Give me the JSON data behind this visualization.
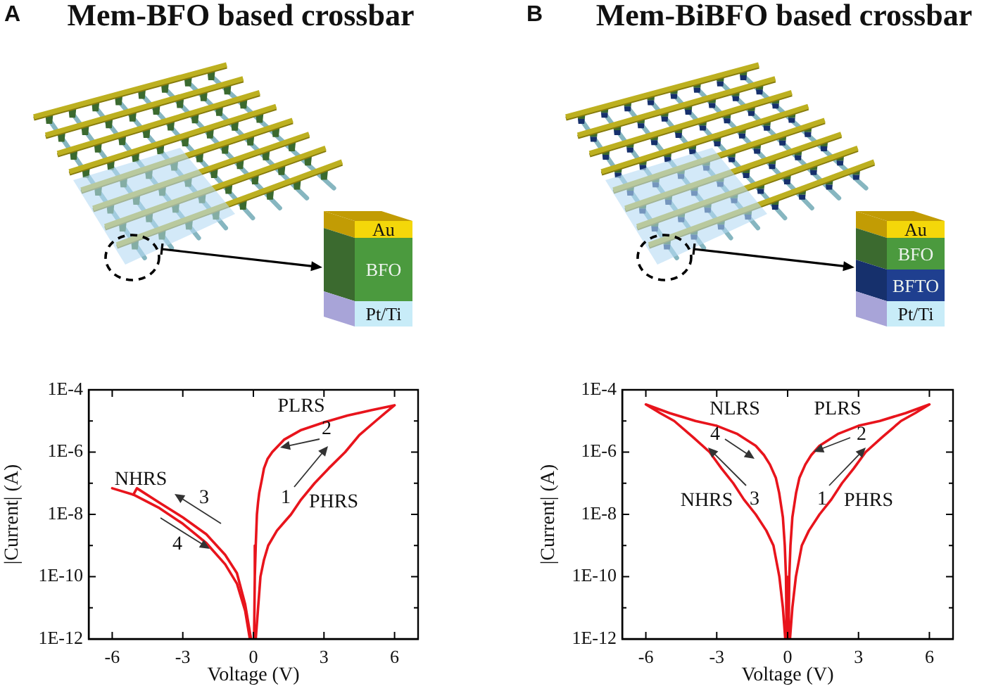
{
  "chart_data": [
    {
      "type": "line",
      "title": "Mem-BFO based crossbar",
      "xlabel": "Voltage (V)",
      "ylabel": "|Current| (A)",
      "xlim": [
        -7,
        7
      ],
      "ylim": [
        1e-12,
        0.0001
      ],
      "log": "y",
      "xticks": [
        -6,
        -3,
        0,
        3,
        6
      ],
      "yticks": [
        {
          "value": 1e-12,
          "label": "1E-12"
        },
        {
          "value": 1e-11,
          "label": null
        },
        {
          "value": 1e-10,
          "label": "1E-10"
        },
        {
          "value": 1e-09,
          "label": null
        },
        {
          "value": 1e-08,
          "label": "1E-8"
        },
        {
          "value": 1e-07,
          "label": null
        },
        {
          "value": 1e-06,
          "label": "1E-6"
        },
        {
          "value": 1e-05,
          "label": null
        },
        {
          "value": 0.0001,
          "label": "1E-4"
        }
      ],
      "series": [
        {
          "color": "#e8141c",
          "x": [
            0.1,
            0.2,
            0.3,
            0.45,
            0.63,
            1.0,
            1.3,
            1.6,
            2.0,
            2.6,
            3.2,
            3.9,
            4.5,
            5.2,
            5.6,
            6,
            5,
            4,
            3,
            2,
            1.3,
            0.8,
            0.6,
            0.45,
            0.35,
            0.25,
            0.2,
            0.15,
            0.1,
            0.06,
            0.03
          ],
          "values": [
            1e-12,
            1e-11,
            1e-10,
            3.5e-10,
            1e-09,
            3e-09,
            5.5e-09,
            1e-08,
            2.8e-08,
            1e-07,
            3e-07,
            1e-06,
            3.5e-06,
            1e-05,
            1.8e-05,
            3.2e-05,
            2.2e-05,
            1.5e-05,
            9e-06,
            5e-06,
            2.5e-06,
            1e-06,
            6e-07,
            3e-07,
            1.2e-07,
            5e-08,
            2.5e-08,
            1e-08,
            1e-09,
            1e-10,
            1e-12
          ]
        },
        {
          "color": "#e8141c",
          "x": [
            -5.1,
            -4.95,
            -4,
            -3,
            -2,
            -1.2,
            -0.7,
            -0.35,
            -0.1
          ],
          "values": [
            4.3e-08,
            6.9e-08,
            2.4e-08,
            8e-09,
            2.3e-09,
            5e-10,
            1.3e-10,
            1.3e-11,
            1e-12
          ]
        },
        {
          "color": "#e8141c",
          "x": [
            -6,
            -5.1,
            -4,
            -3,
            -2,
            -1.2,
            -0.7,
            -0.35,
            -0.15
          ],
          "values": [
            6.9e-08,
            4.3e-08,
            1.6e-08,
            5e-09,
            1.2e-09,
            2.5e-10,
            6e-11,
            8e-12,
            1e-12
          ]
        }
      ],
      "annotations": [
        "A",
        "Au",
        "BFO",
        "Pt/Ti",
        "PLRS",
        "2",
        "1",
        "PHRS",
        "NHRS",
        "3",
        "4"
      ]
    },
    {
      "type": "line",
      "title": "Mem-BiBFO based crossbar",
      "xlabel": "Voltage (V)",
      "ylabel": "|Current| (A)",
      "xlim": [
        -7,
        7
      ],
      "ylim": [
        1e-12,
        0.0001
      ],
      "log": "y",
      "xticks": [
        -6,
        -3,
        0,
        3,
        6
      ],
      "yticks": [
        {
          "value": 1e-12,
          "label": "1E-12"
        },
        {
          "value": 1e-11,
          "label": null
        },
        {
          "value": 1e-10,
          "label": "1E-10"
        },
        {
          "value": 1e-09,
          "label": null
        },
        {
          "value": 1e-08,
          "label": "1E-8"
        },
        {
          "value": 1e-07,
          "label": null
        },
        {
          "value": 1e-06,
          "label": "1E-6"
        },
        {
          "value": 1e-05,
          "label": null
        },
        {
          "value": 0.0001,
          "label": "1E-4"
        }
      ],
      "series": [
        {
          "color": "#e8141c",
          "x": [
            0.1,
            0.2,
            0.35,
            0.6,
            0.9,
            1.35,
            1.85,
            2.3,
            2.8,
            3.3,
            4,
            4.8,
            5.4,
            6,
            5,
            3.9,
            3,
            2.15,
            1.35,
            1,
            0.75,
            0.5,
            0.36,
            0.2,
            0.12,
            0.07,
            0.04
          ],
          "values": [
            1e-12,
            1e-11,
            1e-10,
            1e-09,
            3e-09,
            1e-08,
            3e-08,
            1e-07,
            3e-07,
            1e-06,
            3e-06,
            1e-05,
            1.8e-05,
            3.4e-05,
            1.8e-05,
            1e-05,
            7e-06,
            3.9e-06,
            1.6e-06,
            8e-07,
            4e-07,
            1.5e-07,
            5e-08,
            8e-09,
            1e-09,
            1e-10,
            1e-12
          ]
        },
        {
          "color": "#e8141c",
          "x": [
            -0.1,
            -0.2,
            -0.35,
            -0.6,
            -0.9,
            -1.35,
            -1.85,
            -2.3,
            -2.8,
            -3.3,
            -4,
            -4.8,
            -5.4,
            -6,
            -5,
            -3.9,
            -3,
            -2.15,
            -1.35,
            -1,
            -0.75,
            -0.5,
            -0.36,
            -0.2,
            -0.12,
            -0.07,
            -0.04
          ],
          "values": [
            1e-12,
            1e-11,
            1e-10,
            1e-09,
            3e-09,
            1e-08,
            3e-08,
            1e-07,
            3e-07,
            1e-06,
            3e-06,
            1e-05,
            1.8e-05,
            3.4e-05,
            1.8e-05,
            1e-05,
            7e-06,
            3.9e-06,
            1.6e-06,
            8e-07,
            4e-07,
            1.5e-07,
            5e-08,
            8e-09,
            1e-09,
            1e-10,
            1e-12
          ]
        }
      ],
      "annotations": [
        "B",
        "Au",
        "BFO",
        "BFTO",
        "Pt/Ti",
        "NLRS",
        "PLRS",
        "4",
        "2",
        "NHRS",
        "3",
        "1",
        "PHRS"
      ]
    }
  ]
}
